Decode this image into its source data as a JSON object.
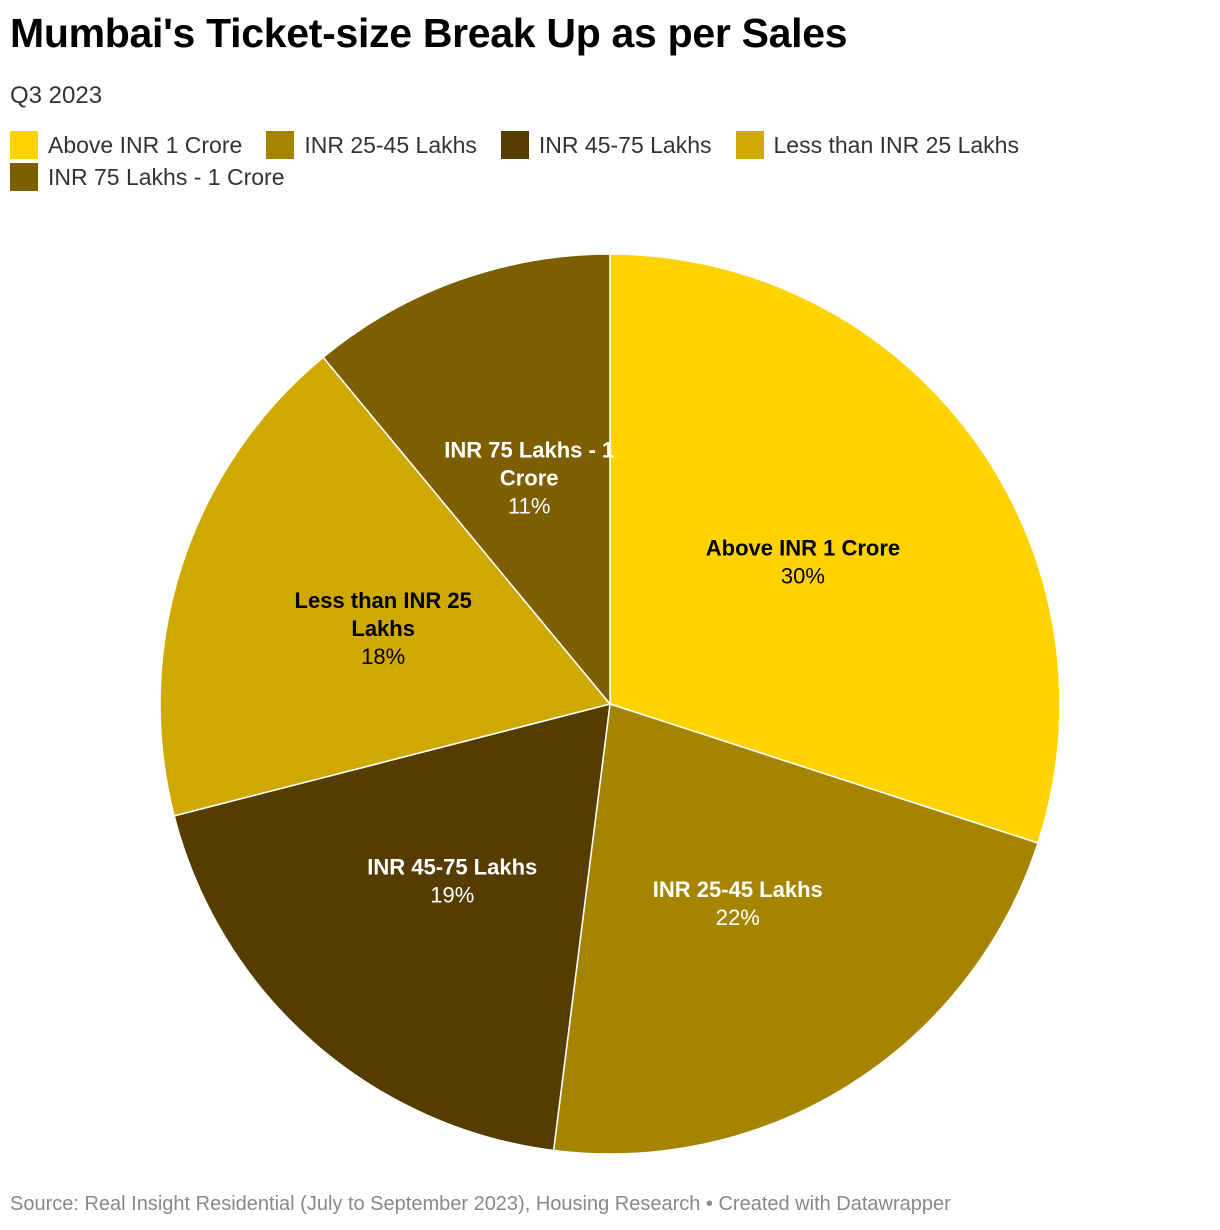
{
  "chart_data": {
    "type": "pie",
    "title": "Mumbai's Ticket-size Break Up as per Sales",
    "subtitle": "Q3 2023",
    "unit": "%",
    "legend_placement": "top-left",
    "slices": [
      {
        "label": "Above INR 1 Crore",
        "value": 30,
        "display": "30%",
        "color": "#FED300",
        "label_color": "#000000"
      },
      {
        "label": "INR 25-45 Lakhs",
        "value": 22,
        "display": "22%",
        "color": "#A58400",
        "label_color": "#ffffff"
      },
      {
        "label": "INR 45-75 Lakhs",
        "value": 19,
        "display": "19%",
        "color": "#553C00",
        "label_color": "#ffffff"
      },
      {
        "label": "Less than INR 25 Lakhs",
        "value": 18,
        "display": "18%",
        "color": "#CFA800",
        "label_color": "#000000"
      },
      {
        "label": "INR 75 Lakhs - 1 Crore",
        "value": 11,
        "display": "11%",
        "color": "#7D5E00",
        "label_color": "#ffffff"
      }
    ],
    "slice_label_lines": [
      [
        "Above INR 1 Crore"
      ],
      [
        "INR 25-45 Lakhs"
      ],
      [
        "INR 45-75 Lakhs"
      ],
      [
        "Less than INR 25",
        "Lakhs"
      ],
      [
        "INR 75 Lakhs - 1",
        "Crore"
      ]
    ]
  },
  "source": "Source: Real Insight Residential (July to September 2023), Housing Research • Created with Datawrapper"
}
